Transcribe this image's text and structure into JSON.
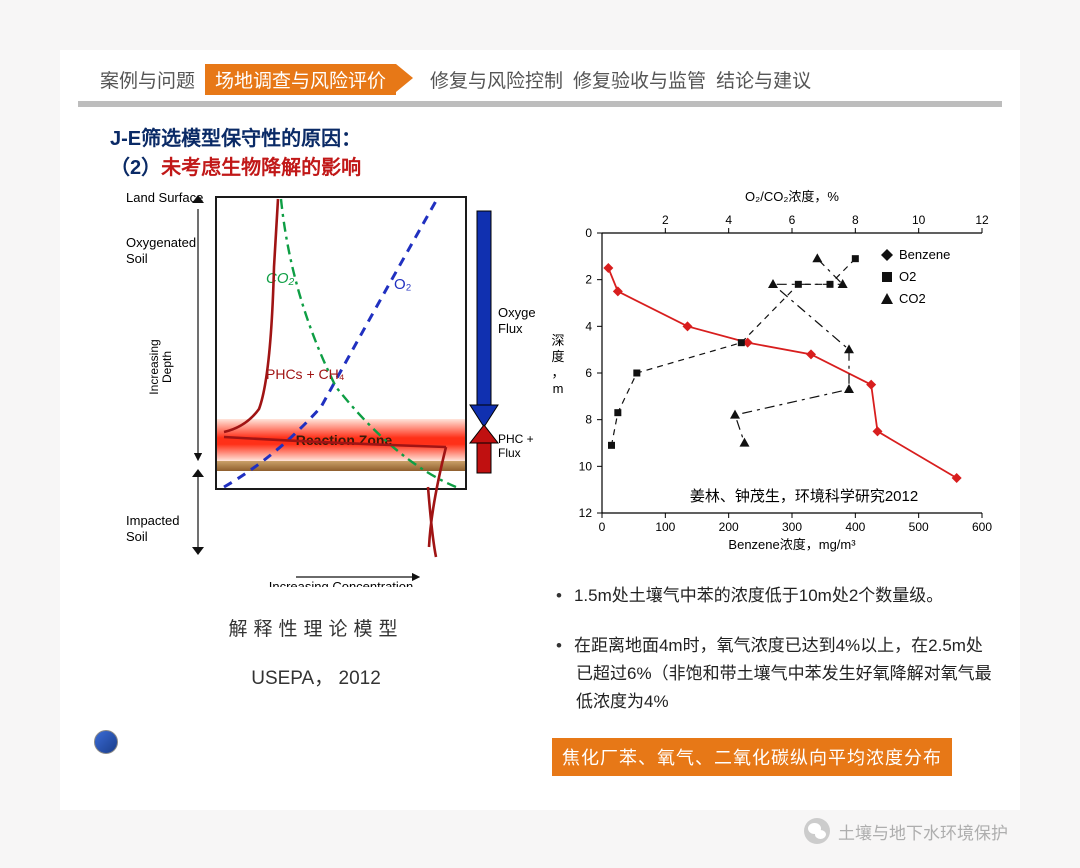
{
  "nav": {
    "items": [
      "案例与问题",
      "场地调查与风险评价",
      "修复与风险控制",
      "修复验收与监管",
      "结论与建议"
    ],
    "active_index": 1,
    "active_bg": "#e77817",
    "text_color": "#555555",
    "bar_color": "#bdbdbd"
  },
  "heading": {
    "line1": "J-E筛选模型保守性的原因：",
    "line2_prefix": "（2）",
    "line2_red": "未考虑生物降解的影响",
    "color": "#0a2a66",
    "red_color": "#c11818",
    "fontsize": 20
  },
  "conceptual_diagram": {
    "type": "diagram",
    "labels": {
      "land_surface": "Land Surface",
      "oxy_soil_1": "Oxygenated",
      "oxy_soil_2": "Soil",
      "impacted_1": "Impacted",
      "impacted_2": "Soil",
      "reaction_zone": "Reaction Zone",
      "inc_depth": "Increasing",
      "inc_depth2": "Depth",
      "inc_conc": "Increasing Concentration",
      "co2": "CO₂",
      "o2": "O₂",
      "phc_ch4": "PHCs + CH₄",
      "oxy_flux1": "Oxyge",
      "oxy_flux2": "Flux",
      "phc_flux1": "PHC +",
      "phc_flux2": "Flux"
    },
    "colors": {
      "border": "#1a1a1a",
      "o2_line": "#2030c0",
      "co2_line": "#0e9e44",
      "phc_line": "#a01414",
      "reaction_gradient_top": "#ffd0c0",
      "reaction_gradient_mid": "#ff2a10",
      "soil_band": "#b37a3a",
      "arrow_blue": "#1030b0",
      "arrow_red": "#c01010",
      "text": "#111111"
    }
  },
  "left_caption": "解释性理论模型",
  "left_caption2": "USEPA， 2012",
  "chart": {
    "type": "line",
    "x_top_label": "O₂/CO₂浓度，%",
    "x_bottom_label": "Benzene浓度，mg/m³",
    "y_label": "深度，m",
    "x_top_ticks": [
      2,
      4,
      6,
      8,
      10,
      12
    ],
    "x_bottom_ticks": [
      0,
      100,
      200,
      300,
      400,
      500,
      600
    ],
    "y_ticks": [
      0,
      2,
      4,
      6,
      8,
      10,
      12
    ],
    "xlim_top": [
      0,
      12
    ],
    "xlim_bottom": [
      0,
      600
    ],
    "ylim": [
      0,
      12
    ],
    "series": [
      {
        "name": "Benzene",
        "marker": "diamond",
        "line_style": "solid",
        "color": "#d81e1e",
        "line_width": 1.8,
        "marker_size": 7,
        "axis": "bottom",
        "points": [
          [
            10,
            1.5
          ],
          [
            25,
            2.5
          ],
          [
            135,
            4
          ],
          [
            230,
            4.7
          ],
          [
            330,
            5.2
          ],
          [
            425,
            6.5
          ],
          [
            435,
            8.5
          ],
          [
            560,
            10.5
          ]
        ]
      },
      {
        "name": "O2",
        "marker": "square",
        "line_style": "dash",
        "color": "#111111",
        "line_width": 1.2,
        "marker_size": 7,
        "axis": "top",
        "points": [
          [
            8.0,
            1.1
          ],
          [
            7.2,
            2.2
          ],
          [
            6.2,
            2.2
          ],
          [
            4.4,
            4.7
          ],
          [
            1.1,
            6.0
          ],
          [
            0.5,
            7.7
          ],
          [
            0.3,
            9.1
          ]
        ]
      },
      {
        "name": "CO2",
        "marker": "triangle",
        "line_style": "dashdot",
        "color": "#111111",
        "line_width": 1.2,
        "marker_size": 8,
        "axis": "top",
        "points": [
          [
            6.8,
            1.1
          ],
          [
            7.6,
            2.2
          ],
          [
            5.4,
            2.2
          ],
          [
            7.8,
            5.0
          ],
          [
            7.8,
            6.7
          ],
          [
            4.2,
            7.8
          ],
          [
            4.5,
            9.0
          ]
        ]
      }
    ],
    "legend": {
      "items": [
        "Benzene",
        "O2",
        "CO2"
      ]
    },
    "citation": "姜林、钟茂生，环境科学研究2012",
    "background_color": "#ffffff",
    "tick_fontsize": 12,
    "label_fontsize": 13
  },
  "bullets": [
    "1.5m处土壤气中苯的浓度低于10m处2个数量级。",
    "在距离地面4m时，氧气浓度已达到4%以上，在2.5m处已超过6%（非饱和带土壤气中苯发生好氧降解对氧气最低浓度为4%"
  ],
  "orange_box": "焦化厂苯、氧气、二氧化碳纵向平均浓度分布",
  "footer_brand": "土壤与地下水环境保护"
}
